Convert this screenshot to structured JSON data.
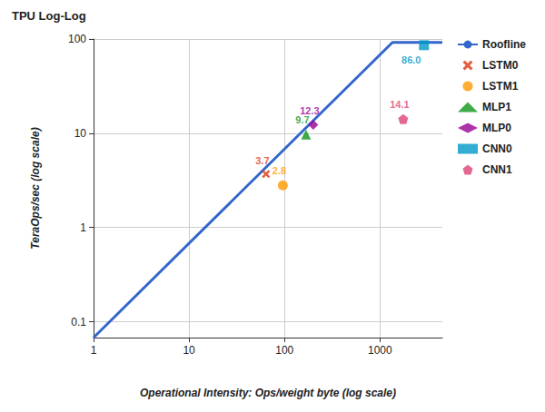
{
  "chart_data": {
    "type": "scatter",
    "title": "TPU Log-Log",
    "x_label": "Operational Intensity: Ops/weight byte (log scale)",
    "y_label": "TeraOps/sec (log scale)",
    "log": true,
    "grid": true,
    "legend": "right",
    "data_labels": true,
    "xlim": [
      1,
      4500
    ],
    "ylim": [
      0.068,
      100
    ],
    "xticks": [
      1,
      10,
      100,
      1000
    ],
    "yticks": [
      0.1,
      1,
      10,
      100
    ],
    "series": [
      {
        "name": "Roofline",
        "type": "line",
        "line_style": "solid",
        "color": "#3366cc",
        "x": [
          1,
          1350,
          4500
        ],
        "values": [
          0.068,
          92,
          92
        ]
      },
      {
        "name": "LSTM0",
        "type": "scatter",
        "marker": "x",
        "color": "#dc3912",
        "x": [
          64
        ],
        "values": [
          3.7
        ]
      },
      {
        "name": "LSTM1",
        "type": "scatter",
        "marker": "circle",
        "color": "#ff9900",
        "x": [
          96
        ],
        "values": [
          2.8
        ]
      },
      {
        "name": "MLP1",
        "type": "scatter",
        "marker": "triangle",
        "color": "#109618",
        "x": [
          168
        ],
        "values": [
          9.7
        ]
      },
      {
        "name": "MLP0",
        "type": "scatter",
        "marker": "diamond",
        "color": "#990099",
        "x": [
          200
        ],
        "values": [
          12.3
        ]
      },
      {
        "name": "CNN0",
        "type": "scatter",
        "marker": "square",
        "color": "#0099c6",
        "x": [
          2888
        ],
        "values": [
          86
        ],
        "value_labels": [
          "86.0"
        ]
      },
      {
        "name": "CNN1",
        "type": "scatter",
        "marker": "pentagon",
        "color": "#dd4477",
        "x": [
          1750
        ],
        "values": [
          14.1
        ]
      }
    ]
  }
}
